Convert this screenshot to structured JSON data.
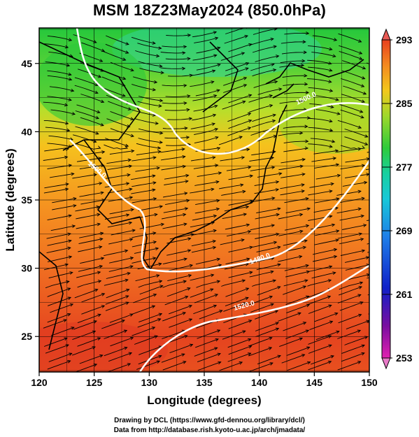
{
  "title": "MSM 18Z23May2024 (850.0hPa)",
  "credits": {
    "line1": "Drawing by DCL (https://www.gfd-dennou.org/library/dcl/)",
    "line2": "Data from http://database.rish.kyoto-u.ac.jp/arch/jmadata/"
  },
  "chart_data": {
    "type": "map",
    "projection": "equirectangular",
    "xlabel": "Longitude (degrees)",
    "ylabel": "Latitude  (degrees)",
    "xlim": [
      120,
      150
    ],
    "ylim": [
      22.4,
      47.6
    ],
    "xticks": [
      120,
      125,
      130,
      135,
      140,
      145,
      150
    ],
    "yticks": [
      25,
      30,
      35,
      40,
      45
    ],
    "grid": true,
    "colorbar": {
      "min": 253,
      "max": 293,
      "tick_labels": [
        "293",
        "285",
        "277",
        "269",
        "261",
        "253"
      ],
      "tick_values": [
        293,
        285,
        277,
        269,
        261,
        253
      ]
    },
    "contour_labels": [
      "1500.0",
      "1500.0",
      "1480.0",
      "1520.0"
    ],
    "colors": {
      "warm": "#e8431f",
      "mid": "#f7a61a",
      "cool": "#23c93a",
      "contour": "#ffffff",
      "coast": "#000000"
    }
  }
}
